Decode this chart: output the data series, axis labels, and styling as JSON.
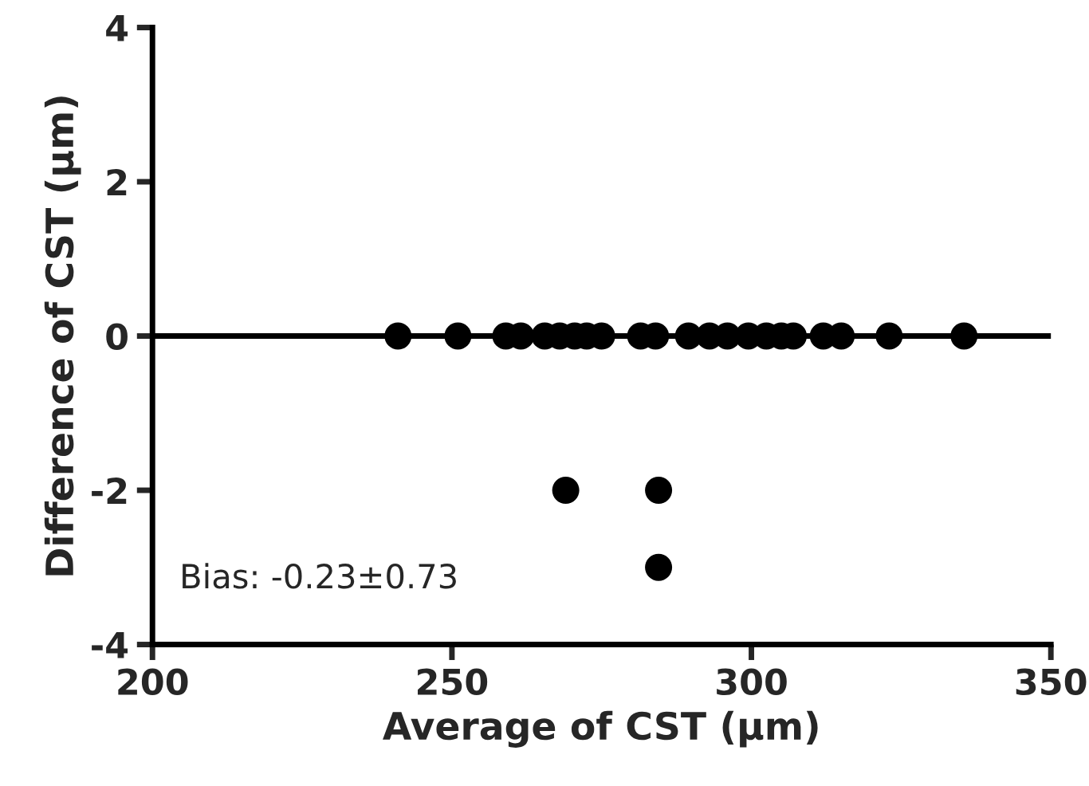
{
  "chart_data": {
    "type": "scatter",
    "xlabel": "Average of CST (µm)",
    "ylabel": "Difference of CST (µm)",
    "x": [
      241,
      251,
      259,
      261.5,
      265.5,
      268,
      270.5,
      272.5,
      275,
      281.5,
      284,
      289.5,
      293,
      296,
      299.5,
      302.5,
      305,
      307,
      312,
      315,
      323,
      335.5,
      269,
      284.5,
      284.5
    ],
    "values": [
      0,
      0,
      0,
      0,
      0,
      0,
      0,
      0,
      0,
      0,
      0,
      0,
      0,
      0,
      0,
      0,
      0,
      0,
      0,
      0,
      0,
      0,
      -2,
      -2,
      -3
    ],
    "color": "#000000",
    "marker": "circle",
    "xlim": [
      200,
      350
    ],
    "xticks": [
      200,
      250,
      300,
      350
    ],
    "ylim": [
      -4,
      4
    ],
    "yticks": [
      -4,
      -2,
      0,
      2,
      4
    ],
    "ref_lines": [
      {
        "axis": "y",
        "value": 0,
        "color": "#000000"
      }
    ],
    "annotations": [
      "Bias: -0.23±0.73"
    ],
    "grid": false
  }
}
